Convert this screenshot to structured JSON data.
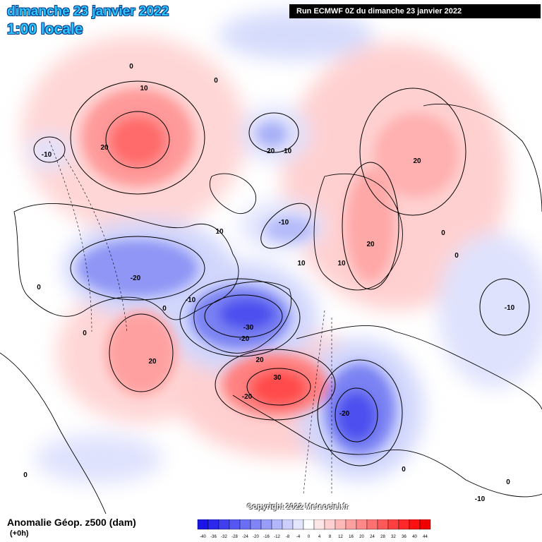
{
  "header": {
    "date_title": "dimanche 23 janvier 2022",
    "time_title": "1:00 locale",
    "run_banner": "Run ECMWF 0Z du dimanche 23 janvier 2022"
  },
  "copyright": "Copyright 2022 Meteociel.fr",
  "footer": {
    "title": "Anomalie Géop. z500 (dam)",
    "subtitle": "(+0h)"
  },
  "legend": {
    "values": [
      "-40",
      "-36",
      "-32",
      "-28",
      "-24",
      "-20",
      "-16",
      "-12",
      "-8",
      "-4",
      "0",
      "4",
      "8",
      "12",
      "16",
      "20",
      "24",
      "28",
      "32",
      "36",
      "40",
      "44"
    ],
    "colors": [
      "#1a14e6",
      "#2b28ec",
      "#3f3ff0",
      "#5557f2",
      "#6a6ef4",
      "#7f85f6",
      "#979df8",
      "#b2b6fa",
      "#cccffc",
      "#e4e6fe",
      "#ffffff",
      "#ffe6e6",
      "#ffd0d0",
      "#ffb8b8",
      "#ffa0a0",
      "#ff8888",
      "#ff7070",
      "#ff5858",
      "#ff4040",
      "#ff2828",
      "#ff1010",
      "#f00000"
    ]
  },
  "contour_labels": [
    "0",
    "10",
    "0",
    "-10",
    "20",
    "-20",
    "-10",
    "20",
    "0",
    "0",
    "-10",
    "10",
    "10",
    "20",
    "-20",
    "0",
    "10",
    "-20",
    "-30",
    "-10",
    "0",
    "-10",
    "0",
    "20",
    "-20",
    "20",
    "30",
    "-20",
    "0",
    "0",
    "0",
    "-10"
  ]
}
